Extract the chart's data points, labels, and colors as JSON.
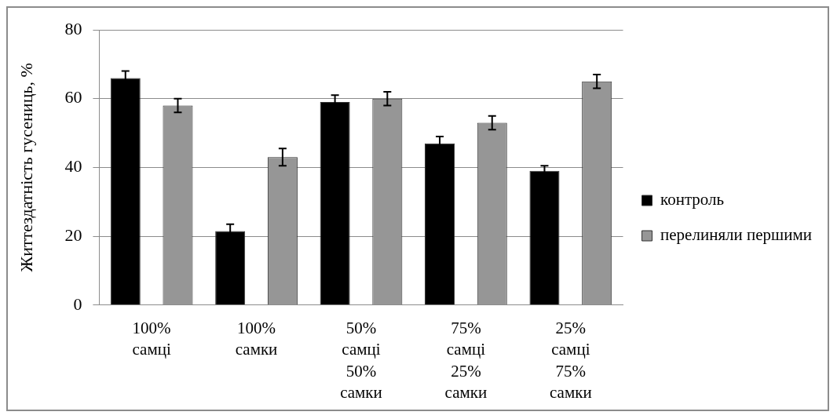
{
  "chart_data": {
    "type": "bar",
    "ylabel": "Життездатність гусениць, %",
    "categories": [
      "100%\nсамці",
      "100%\nсамки",
      "50%\nсамці\n50%\nсамки",
      "75%\nсамці\n25%\nсамки",
      "25%\nсамці\n75%\nсамки"
    ],
    "series": [
      {
        "name": "контроль",
        "color": "#000000",
        "values": [
          66,
          21.5,
          59,
          47,
          39
        ],
        "errors": [
          2,
          2,
          2,
          2,
          1.5
        ]
      },
      {
        "name": "перелиняли першими",
        "color": "#969696",
        "values": [
          58,
          43,
          60,
          53,
          65
        ],
        "errors": [
          2,
          2.5,
          2,
          2,
          2
        ]
      }
    ],
    "ylim": [
      0,
      80
    ],
    "yticks": [
      0,
      20,
      40,
      60,
      80
    ],
    "grid": "y",
    "legend": "right"
  }
}
